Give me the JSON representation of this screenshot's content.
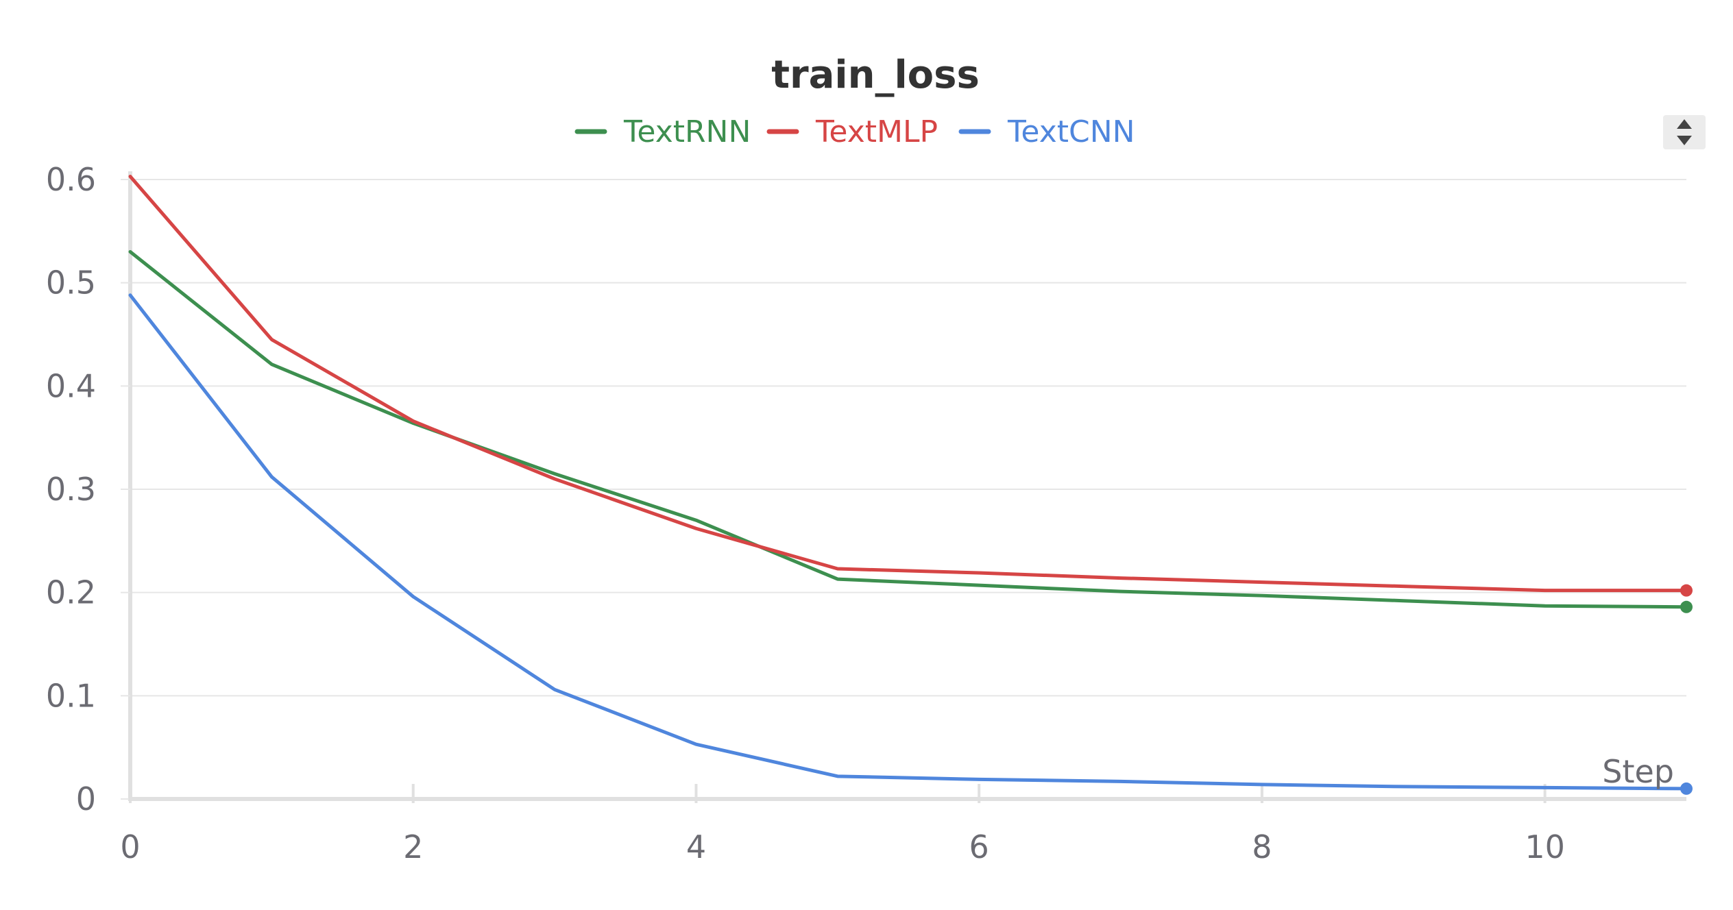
{
  "chart_data": {
    "type": "line",
    "title": "train_loss",
    "xlabel": "Step",
    "ylabel": "",
    "xlim": [
      0,
      11
    ],
    "ylim": [
      0,
      0.6
    ],
    "x_ticks": [
      0,
      2,
      4,
      6,
      8,
      10
    ],
    "y_ticks": [
      0,
      0.1,
      0.2,
      0.3,
      0.4,
      0.5,
      0.6
    ],
    "y_tick_labels": [
      "0",
      "0.1",
      "0.2",
      "0.3",
      "0.4",
      "0.5",
      "0.6"
    ],
    "grid": true,
    "legend_position": "top-center",
    "x": [
      0,
      1,
      2,
      3,
      4,
      5,
      6,
      7,
      8,
      9,
      10,
      11
    ],
    "series": [
      {
        "name": "TextRNN",
        "color": "#3d8f4f",
        "values": [
          0.53,
          0.421,
          0.364,
          0.315,
          0.27,
          0.213,
          0.207,
          0.201,
          0.197,
          0.192,
          0.187,
          0.186
        ]
      },
      {
        "name": "TextMLP",
        "color": "#d64545",
        "values": [
          0.603,
          0.445,
          0.366,
          0.31,
          0.262,
          0.223,
          0.219,
          0.214,
          0.21,
          0.206,
          0.202,
          0.202
        ]
      },
      {
        "name": "TextCNN",
        "color": "#4f86dd",
        "values": [
          0.488,
          0.312,
          0.196,
          0.106,
          0.053,
          0.022,
          0.019,
          0.017,
          0.014,
          0.012,
          0.011,
          0.01
        ]
      }
    ]
  },
  "controls": {
    "expand_icon": "up-down-arrows-icon",
    "button_bg": "#ececec"
  }
}
